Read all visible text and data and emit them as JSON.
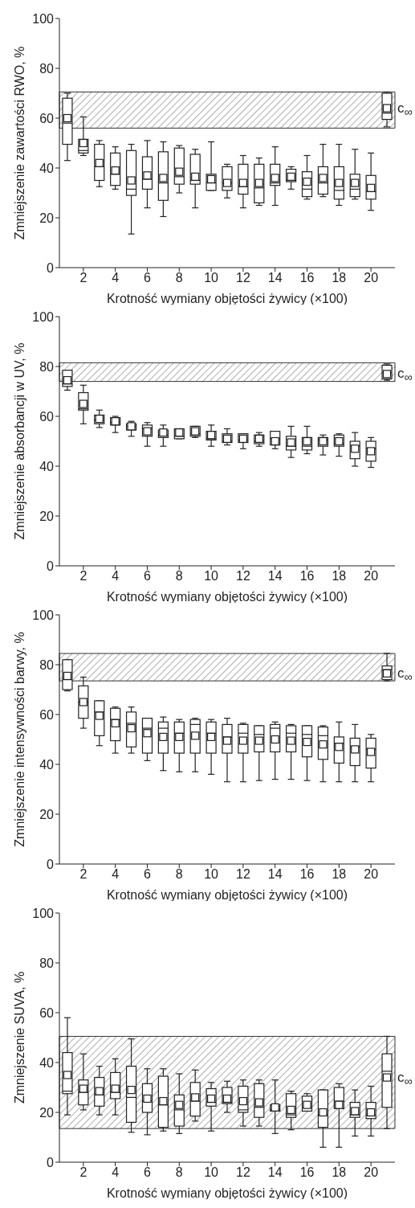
{
  "chart_data": [
    {
      "type": "box",
      "ylabel": "Zmniejszenie zawartości RWO, %",
      "xlabel": "Krotność wymiany objętości żywicy (×100)",
      "categories": [
        null,
        "2",
        null,
        "4",
        null,
        "6",
        null,
        "8",
        null,
        "10",
        null,
        "12",
        null,
        "14",
        null,
        "16",
        null,
        "18",
        null,
        "20",
        null
      ],
      "ylim": [
        0,
        100
      ],
      "yticks": [
        0,
        20,
        40,
        60,
        80,
        100
      ],
      "marker": "square",
      "annotations": [
        "c$_{∞}$"
      ],
      "bands": [
        {
          "axis": "y",
          "from": 56,
          "to": 70.5,
          "color": "#333333"
        }
      ],
      "boxes": [
        {
          "low": 43,
          "q1": 49.5,
          "median": 58,
          "q3": 68,
          "high": 70,
          "mean": 60
        },
        {
          "low": 45,
          "q1": 46,
          "median": 47,
          "q3": 51.5,
          "high": 60.5,
          "mean": 50
        },
        {
          "low": 32.5,
          "q1": 35,
          "median": 40.5,
          "q3": 49.5,
          "high": 51,
          "mean": 42
        },
        {
          "low": 31.5,
          "q1": 33,
          "median": 37.5,
          "q3": 46,
          "high": 48.5,
          "mean": 39
        },
        {
          "low": 13.5,
          "q1": 29,
          "median": 31.5,
          "q3": 47,
          "high": 49.5,
          "mean": 35
        },
        {
          "low": 24,
          "q1": 31.5,
          "median": 35.5,
          "q3": 44.5,
          "high": 51,
          "mean": 37
        },
        {
          "low": 20.5,
          "q1": 27,
          "median": 34,
          "q3": 46.5,
          "high": 50.5,
          "mean": 36
        },
        {
          "low": 30,
          "q1": 33.5,
          "median": 36.5,
          "q3": 48,
          "high": 49,
          "mean": 38.5
        },
        {
          "low": 24,
          "q1": 33.5,
          "median": 35,
          "q3": 45.5,
          "high": 47.5,
          "mean": 36.5
        },
        {
          "low": 31,
          "q1": 31,
          "median": 34,
          "q3": 37.5,
          "high": 50.5,
          "mean": 35.5
        },
        {
          "low": 28,
          "q1": 31,
          "median": 34,
          "q3": 40.5,
          "high": 41.5,
          "mean": 34
        },
        {
          "low": 24,
          "q1": 29.5,
          "median": 32.5,
          "q3": 41.5,
          "high": 45,
          "mean": 34
        },
        {
          "low": 25,
          "q1": 26,
          "median": 32,
          "q3": 41.5,
          "high": 44,
          "mean": 34
        },
        {
          "low": 25,
          "q1": 33,
          "median": 34,
          "q3": 41.5,
          "high": 48.5,
          "mean": 36
        },
        {
          "low": 31.5,
          "q1": 34.5,
          "median": 35,
          "q3": 39.5,
          "high": 40.5,
          "mean": 36.5
        },
        {
          "low": 27.5,
          "q1": 28.5,
          "median": 31.5,
          "q3": 38.5,
          "high": 45,
          "mean": 34.5
        },
        {
          "low": 28.5,
          "q1": 29.5,
          "median": 34,
          "q3": 40.5,
          "high": 49.5,
          "mean": 36
        },
        {
          "low": 25,
          "q1": 27.5,
          "median": 31,
          "q3": 40.5,
          "high": 49.5,
          "mean": 34
        },
        {
          "low": 27.5,
          "q1": 28.5,
          "median": 31.5,
          "q3": 37.5,
          "high": 47.5,
          "mean": 34
        },
        {
          "low": 23,
          "q1": 27.5,
          "median": 30.5,
          "q3": 37,
          "high": 46,
          "mean": 32
        },
        {
          "low": 56.5,
          "q1": 59.5,
          "median": 62,
          "q3": 70,
          "high": 70.5,
          "mean": 64
        }
      ]
    },
    {
      "type": "box",
      "ylabel": "Zmniejszenie absorbancji w UV, %",
      "xlabel": "Krotność wymiany objętości żywicy (×100)",
      "categories": [
        null,
        "2",
        null,
        "4",
        null,
        "6",
        null,
        "8",
        null,
        "10",
        null,
        "12",
        null,
        "14",
        null,
        "16",
        null,
        "18",
        null,
        "20",
        null
      ],
      "ylim": [
        0,
        100
      ],
      "yticks": [
        0,
        20,
        40,
        60,
        80,
        100
      ],
      "marker": "square",
      "annotations": [
        "c$_{∞}$"
      ],
      "bands": [
        {
          "axis": "y",
          "from": 74,
          "to": 81.5,
          "color": "#333333"
        }
      ],
      "boxes": [
        {
          "low": 70.5,
          "q1": 72,
          "median": 73,
          "q3": 78.5,
          "high": 78.5,
          "mean": 74.5
        },
        {
          "low": 57,
          "q1": 62.5,
          "median": 63,
          "q3": 69.5,
          "high": 72.5,
          "mean": 65
        },
        {
          "low": 55.5,
          "q1": 57,
          "median": 58.5,
          "q3": 60.5,
          "high": 62.5,
          "mean": 59
        },
        {
          "low": 53.5,
          "q1": 56.5,
          "median": 57.5,
          "q3": 59.5,
          "high": 60,
          "mean": 58
        },
        {
          "low": 52,
          "q1": 54.5,
          "median": 56,
          "q3": 57,
          "high": 58,
          "mean": 56
        },
        {
          "low": 48,
          "q1": 52,
          "median": 55,
          "q3": 56.5,
          "high": 57.5,
          "mean": 54
        },
        {
          "low": 48,
          "q1": 51.5,
          "median": 52.5,
          "q3": 54.5,
          "high": 56.5,
          "mean": 53.5
        },
        {
          "low": 51,
          "q1": 51,
          "median": 52,
          "q3": 55,
          "high": 55,
          "mean": 53.5
        },
        {
          "low": 51.5,
          "q1": 52,
          "median": 53,
          "q3": 56,
          "high": 56,
          "mean": 54
        },
        {
          "low": 48,
          "q1": 50.5,
          "median": 51,
          "q3": 54,
          "high": 56.5,
          "mean": 52.5
        },
        {
          "low": 48.5,
          "q1": 49.5,
          "median": 50,
          "q3": 53,
          "high": 55,
          "mean": 51
        },
        {
          "low": 47,
          "q1": 49.5,
          "median": 50.5,
          "q3": 53,
          "high": 53,
          "mean": 51
        },
        {
          "low": 48,
          "q1": 49,
          "median": 50,
          "q3": 52.5,
          "high": 53.5,
          "mean": 51
        },
        {
          "low": 47,
          "q1": 48.5,
          "median": 51,
          "q3": 54,
          "high": 54,
          "mean": 50
        },
        {
          "low": 43.5,
          "q1": 46.5,
          "median": 48,
          "q3": 52,
          "high": 56,
          "mean": 49.5
        },
        {
          "low": 45,
          "q1": 46.5,
          "median": 48,
          "q3": 51.5,
          "high": 56,
          "mean": 50
        },
        {
          "low": 44.5,
          "q1": 48,
          "median": 50.5,
          "q3": 51.5,
          "high": 52.5,
          "mean": 50
        },
        {
          "low": 44,
          "q1": 48,
          "median": 49,
          "q3": 52.5,
          "high": 53,
          "mean": 50
        },
        {
          "low": 40,
          "q1": 43,
          "median": 48,
          "q3": 50,
          "high": 53.5,
          "mean": 47
        },
        {
          "low": 39.5,
          "q1": 42,
          "median": 47,
          "q3": 50,
          "high": 51.5,
          "mean": 46
        },
        {
          "low": 74.5,
          "q1": 75,
          "median": 77.5,
          "q3": 80.5,
          "high": 81,
          "mean": 77
        }
      ]
    },
    {
      "type": "box",
      "ylabel": "Zmniejszenie intensywności barwy, %",
      "xlabel": "Krotność wymiany objętości żywicy (×100)",
      "categories": [
        null,
        "2",
        null,
        "4",
        null,
        "6",
        null,
        "8",
        null,
        "10",
        null,
        "12",
        null,
        "14",
        null,
        "16",
        null,
        "18",
        null,
        "20",
        null
      ],
      "ylim": [
        0,
        100
      ],
      "yticks": [
        0,
        20,
        40,
        60,
        80,
        100
      ],
      "marker": "square",
      "annotations": [
        "c$_{∞}$"
      ],
      "bands": [
        {
          "axis": "y",
          "from": 73.5,
          "to": 84.5,
          "color": "#333333"
        }
      ],
      "boxes": [
        {
          "low": 69.5,
          "q1": 70,
          "median": 74,
          "q3": 82,
          "high": 82,
          "mean": 75.5
        },
        {
          "low": 54.5,
          "q1": 58.5,
          "median": 65,
          "q3": 71.5,
          "high": 75,
          "mean": 65
        },
        {
          "low": 47.5,
          "q1": 51.5,
          "median": 61,
          "q3": 65.5,
          "high": 65.5,
          "mean": 59.5
        },
        {
          "low": 44.5,
          "q1": 49.5,
          "median": 58,
          "q3": 62.5,
          "high": 63,
          "mean": 56.5
        },
        {
          "low": 44.5,
          "q1": 47,
          "median": 56.5,
          "q3": 61,
          "high": 63,
          "mean": 54.5
        },
        {
          "low": 41.5,
          "q1": 44.5,
          "median": 54.5,
          "q3": 58.5,
          "high": 58.5,
          "mean": 52.5
        },
        {
          "low": 37.5,
          "q1": 44.5,
          "median": 54.5,
          "q3": 57,
          "high": 59,
          "mean": 51
        },
        {
          "low": 37,
          "q1": 44.5,
          "median": 52.5,
          "q3": 57,
          "high": 58,
          "mean": 51
        },
        {
          "low": 37,
          "q1": 44.5,
          "median": 56,
          "q3": 58,
          "high": 58.5,
          "mean": 51.5
        },
        {
          "low": 36,
          "q1": 44.5,
          "median": 52.5,
          "q3": 57,
          "high": 58,
          "mean": 51
        },
        {
          "low": 33,
          "q1": 44.5,
          "median": 51,
          "q3": 56,
          "high": 58.5,
          "mean": 49.5
        },
        {
          "low": 33,
          "q1": 44.5,
          "median": 52.5,
          "q3": 56,
          "high": 56.5,
          "mean": 49.5
        },
        {
          "low": 33.5,
          "q1": 45,
          "median": 52,
          "q3": 55.5,
          "high": 55.5,
          "mean": 49.5
        },
        {
          "low": 34,
          "q1": 45,
          "median": 54.5,
          "q3": 56,
          "high": 57,
          "mean": 50
        },
        {
          "low": 34,
          "q1": 45,
          "median": 52.5,
          "q3": 55.5,
          "high": 56,
          "mean": 49.5
        },
        {
          "low": 33.5,
          "q1": 43,
          "median": 52,
          "q3": 55.5,
          "high": 55.5,
          "mean": 49
        },
        {
          "low": 33,
          "q1": 42,
          "median": 51.5,
          "q3": 55,
          "high": 55.5,
          "mean": 48
        },
        {
          "low": 33,
          "q1": 40.5,
          "median": 48.5,
          "q3": 51,
          "high": 57,
          "mean": 47
        },
        {
          "low": 33,
          "q1": 39.5,
          "median": 47,
          "q3": 50.5,
          "high": 56,
          "mean": 46
        },
        {
          "low": 33,
          "q1": 38.5,
          "median": 46,
          "q3": 50.5,
          "high": 52,
          "mean": 45
        },
        {
          "low": 73.5,
          "q1": 74,
          "median": 78,
          "q3": 79.5,
          "high": 84.5,
          "mean": 76.5
        }
      ]
    },
    {
      "type": "box",
      "ylabel": "Zmniejszenie SUVA, %",
      "xlabel": "Krotność wymiany objętości żywicy (×100)",
      "categories": [
        null,
        "2",
        null,
        "4",
        null,
        "6",
        null,
        "8",
        null,
        "10",
        null,
        "12",
        null,
        "14",
        null,
        "16",
        null,
        "18",
        null,
        "20",
        null
      ],
      "ylim": [
        0,
        100
      ],
      "yticks": [
        0,
        20,
        40,
        60,
        80,
        100
      ],
      "marker": "square",
      "annotations": [
        "c$_{∞}$"
      ],
      "bands": [
        {
          "axis": "y",
          "from": 13.5,
          "to": 50.5,
          "color": "#333333"
        }
      ],
      "boxes": [
        {
          "low": 19,
          "q1": 27.5,
          "median": 28.5,
          "q3": 44,
          "high": 58,
          "mean": 35
        },
        {
          "low": 21,
          "q1": 23,
          "median": 28,
          "q3": 33,
          "high": 43.5,
          "mean": 29.5
        },
        {
          "low": 19,
          "q1": 22.5,
          "median": 27,
          "q3": 34,
          "high": 38.5,
          "mean": 28.5
        },
        {
          "low": 19,
          "q1": 25.5,
          "median": 28,
          "q3": 36,
          "high": 41.5,
          "mean": 29.5
        },
        {
          "low": 12,
          "q1": 16,
          "median": 26,
          "q3": 38.5,
          "high": 49.5,
          "mean": 29
        },
        {
          "low": 11,
          "q1": 20,
          "median": 24.5,
          "q3": 31.5,
          "high": 37.5,
          "mean": 25.5
        },
        {
          "low": 12.5,
          "q1": 14,
          "median": 23,
          "q3": 34.5,
          "high": 37.5,
          "mean": 24.5
        },
        {
          "low": 11.5,
          "q1": 14.5,
          "median": 21,
          "q3": 27,
          "high": 35.5,
          "mean": 23
        },
        {
          "low": 16.5,
          "q1": 18.5,
          "median": 24.5,
          "q3": 32,
          "high": 37,
          "mean": 26
        },
        {
          "low": 12.5,
          "q1": 22.5,
          "median": 24,
          "q3": 29.5,
          "high": 32,
          "mean": 25.5
        },
        {
          "low": 20,
          "q1": 23.5,
          "median": 24,
          "q3": 30,
          "high": 32.5,
          "mean": 25.5
        },
        {
          "low": 14.5,
          "q1": 20,
          "median": 21,
          "q3": 30.5,
          "high": 33,
          "mean": 24.5
        },
        {
          "low": 14.5,
          "q1": 18,
          "median": 22,
          "q3": 31.5,
          "high": 33,
          "mean": 24
        },
        {
          "low": 11.5,
          "q1": 20.5,
          "median": 21,
          "q3": 23,
          "high": 33,
          "mean": 22
        },
        {
          "low": 13,
          "q1": 18,
          "median": 19,
          "q3": 27.5,
          "high": 28.5,
          "mean": 21
        },
        {
          "low": 20.5,
          "q1": 20.5,
          "median": 22,
          "q3": 26.5,
          "high": 27.5,
          "mean": 23
        },
        {
          "low": 6,
          "q1": 14,
          "median": 19,
          "q3": 29,
          "high": 29,
          "mean": 20
        },
        {
          "low": 6,
          "q1": 21.5,
          "median": 24.5,
          "q3": 30,
          "high": 31.5,
          "mean": 23
        },
        {
          "low": 10.5,
          "q1": 18,
          "median": 19,
          "q3": 24,
          "high": 29,
          "mean": 20.5
        },
        {
          "low": 10.5,
          "q1": 17.5,
          "median": 19,
          "q3": 24,
          "high": 30.5,
          "mean": 20
        },
        {
          "low": 13.5,
          "q1": 22,
          "median": 36.5,
          "q3": 43.5,
          "high": 50.5,
          "mean": 34
        }
      ]
    }
  ]
}
